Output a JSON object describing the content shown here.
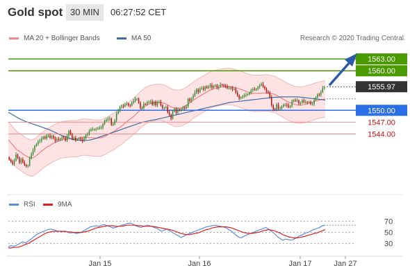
{
  "header": {
    "title": "Gold spot",
    "interval": "30 MIN",
    "time": "06:27:52 CET"
  },
  "legend": {
    "bollinger_label": "MA 20 + Bollinger Bands",
    "ma50_label": "MA 50",
    "credit": "Research © 2020 Trading Central"
  },
  "lower_legend": {
    "rsi_label": "RSI",
    "ma9_label": "9MA"
  },
  "colors": {
    "bullish": "#2e8b2e",
    "bearish": "#b31212",
    "bollinger": "#f08080",
    "ma50": "#3a6ea5",
    "rsi": "#5b8dd9",
    "rsi_ma9": "#e02020",
    "resistance": "#4a9a00",
    "pivot": "#2a6ee8",
    "support": "#f08a8a",
    "current": "#333333",
    "arrow": "#2a5aa8"
  },
  "chart_data": [
    {
      "type": "candlestick",
      "x_ticks": [
        "Jan 15",
        "Jan 16",
        "Jan 17",
        "Jan 27"
      ],
      "ylim": [
        1532,
        1566
      ],
      "levels": [
        {
          "label": "1563.00",
          "value": 1563.0,
          "kind": "resistance"
        },
        {
          "label": "1560.00",
          "value": 1560.0,
          "kind": "resistance"
        },
        {
          "label": "1555.97",
          "value": 1555.97,
          "kind": "current"
        },
        {
          "label": "1550.00",
          "value": 1550.0,
          "kind": "pivot"
        },
        {
          "label": "1547.00",
          "value": 1547.0,
          "kind": "support"
        },
        {
          "label": "1544.00",
          "value": 1544.0,
          "kind": "support"
        }
      ],
      "close": [
        1537.5,
        1537.0,
        1536.4,
        1537.3,
        1538.8,
        1538.0,
        1536.8,
        1537.6,
        1536.8,
        1536.2,
        1535.9,
        1536.0,
        1537.9,
        1538.9,
        1539.9,
        1541.0,
        1541.4,
        1542.1,
        1542.3,
        1542.8,
        1543.3,
        1542.9,
        1543.6,
        1543.6,
        1543.0,
        1543.5,
        1543.0,
        1542.3,
        1542.7,
        1542.6,
        1542.8,
        1543.2,
        1543.0,
        1542.4,
        1543.5,
        1544.8,
        1543.9,
        1542.8,
        1543.0,
        1542.5,
        1542.7,
        1542.9,
        1542.6,
        1542.2,
        1542.9,
        1543.8,
        1544.1,
        1544.8,
        1545.1,
        1545.2,
        1545.2,
        1545.3,
        1545.4,
        1545.6,
        1545.6,
        1546.5,
        1547.3,
        1547.6,
        1547.8,
        1547.9,
        1546.3,
        1546.6,
        1547.4,
        1549.2,
        1549.8,
        1550.9,
        1551.2,
        1551.0,
        1551.5,
        1551.7,
        1551.3,
        1551.2,
        1551.9,
        1552.4,
        1552.9,
        1552.9,
        1551.9,
        1550.6,
        1550.6,
        1551.6,
        1551.5,
        1552.1,
        1552.1,
        1552.2,
        1551.4,
        1552.2,
        1551.3,
        1552.0,
        1552.1,
        1551.3,
        1550.6,
        1550.6,
        1550.8,
        1549.5,
        1548.9,
        1547.9,
        1549.8,
        1550.3,
        1549.4,
        1550.2,
        1550.0,
        1550.3,
        1550.7,
        1550.5,
        1550.9,
        1552.9,
        1552.4,
        1552.9,
        1553.7,
        1554.5,
        1555.3,
        1554.6,
        1555.5,
        1555.6,
        1555.3,
        1556.0,
        1555.7,
        1556.0,
        1556.4,
        1555.7,
        1556.2,
        1556.3,
        1555.7,
        1556.0,
        1556.5,
        1556.4,
        1556.2,
        1556.1,
        1555.6,
        1555.6,
        1555.8,
        1555.3,
        1555.4,
        1554.5,
        1553.8,
        1553.0,
        1553.2,
        1553.5,
        1553.8,
        1553.9,
        1554.1,
        1554.4,
        1555.1,
        1555.3,
        1555.2,
        1555.4,
        1555.9,
        1556.3,
        1556.6,
        1556.0,
        1555.5,
        1554.7,
        1554.4,
        1553.3,
        1551.3,
        1550.3,
        1550.1,
        1551.5,
        1550.4,
        1550.4,
        1551.0,
        1551.4,
        1551.4,
        1551.2,
        1550.8,
        1551.1,
        1552.4,
        1552.5,
        1552.4,
        1552.5,
        1551.7,
        1551.9,
        1552.5,
        1552.1,
        1552.1,
        1552.0,
        1552.1,
        1551.6,
        1551.6,
        1552.6,
        1553.3,
        1554.0,
        1553.9,
        1554.6,
        1555.6,
        1555.97
      ],
      "ma20": [
        1542.5,
        1541.9,
        1541.3,
        1540.7,
        1540.1,
        1539.7,
        1539.4,
        1539.0,
        1538.6,
        1538.3,
        1538.1,
        1537.9,
        1538.0,
        1538.3,
        1538.7,
        1539.1,
        1539.6,
        1540.0,
        1540.4,
        1540.8,
        1541.0,
        1541.4,
        1541.7,
        1541.9,
        1542.1,
        1542.4,
        1542.5,
        1542.6,
        1542.7,
        1542.7,
        1542.8,
        1542.8,
        1542.8,
        1542.8,
        1542.9,
        1543.1,
        1543.2,
        1543.2,
        1543.2,
        1543.1,
        1543.1,
        1543.0,
        1543.0,
        1542.9,
        1543.0,
        1543.0,
        1543.2,
        1543.4,
        1543.7,
        1544.0,
        1544.3,
        1544.6,
        1544.9,
        1545.3,
        1545.6,
        1546.0,
        1546.4,
        1546.9,
        1547.3,
        1547.7,
        1548.1,
        1548.5,
        1549.0,
        1549.5,
        1550.0,
        1550.5,
        1550.9,
        1551.2,
        1551.5,
        1551.7,
        1551.8,
        1551.9,
        1552.0,
        1552.0,
        1552.0,
        1551.9,
        1551.7,
        1551.5,
        1551.2,
        1550.9,
        1550.7,
        1550.5,
        1550.5,
        1550.5,
        1550.6,
        1550.8,
        1551.1,
        1551.4,
        1551.8,
        1552.2,
        1552.6,
        1552.9,
        1553.3,
        1553.6,
        1553.9,
        1554.2,
        1554.5,
        1554.8,
        1555.1,
        1555.3,
        1555.5,
        1555.6,
        1555.7,
        1555.8,
        1555.9,
        1556.0,
        1556.0,
        1556.0,
        1556.0,
        1555.9,
        1555.8,
        1555.6,
        1555.5,
        1555.3,
        1555.1,
        1554.9,
        1554.7,
        1554.5,
        1554.4,
        1554.3,
        1554.3,
        1554.3,
        1554.3,
        1554.3,
        1554.4,
        1554.4,
        1554.4,
        1554.3,
        1554.2,
        1554.1,
        1553.9,
        1553.6,
        1553.3,
        1553.0,
        1552.7,
        1552.4,
        1552.1,
        1551.9,
        1551.7,
        1551.5,
        1551.4,
        1551.3,
        1551.3,
        1551.4,
        1551.5,
        1551.6,
        1551.8,
        1551.9,
        1552.1,
        1552.3,
        1552.4,
        1552.6,
        1552.7,
        1552.8,
        1552.9
      ],
      "ma50": [
        1549.5,
        1549.0,
        1548.5,
        1548.0,
        1547.6,
        1547.2,
        1546.9,
        1546.6,
        1546.3,
        1546.0,
        1545.7,
        1545.4,
        1545.1,
        1544.7,
        1544.3,
        1543.9,
        1543.5,
        1543.2,
        1542.9,
        1542.6,
        1542.5,
        1542.4,
        1542.4,
        1542.4,
        1542.5,
        1542.7,
        1543.0,
        1543.3,
        1543.6,
        1543.9,
        1544.2,
        1544.5,
        1544.8,
        1545.1,
        1545.4,
        1545.7,
        1546.0,
        1546.3,
        1546.6,
        1546.9,
        1547.1,
        1547.3,
        1547.5,
        1547.6,
        1547.8,
        1548.0,
        1548.2,
        1548.4,
        1548.6,
        1548.8,
        1549.0,
        1549.2,
        1549.4,
        1549.6,
        1549.8,
        1550.0,
        1550.2,
        1550.4,
        1550.6,
        1550.8,
        1551.0,
        1551.2,
        1551.4,
        1551.6,
        1551.8,
        1552.0,
        1552.1,
        1552.2,
        1552.3,
        1552.4,
        1552.5,
        1552.6,
        1552.7,
        1552.8,
        1552.9,
        1553.0,
        1553.1,
        1553.2,
        1553.3,
        1553.3,
        1553.4,
        1553.4,
        1553.4,
        1553.4,
        1553.4,
        1553.4,
        1553.3,
        1553.2,
        1553.1,
        1553.0,
        1552.9,
        1552.8,
        1552.7,
        1552.6
      ],
      "rsi_ylim": [
        12,
        82
      ],
      "rsi_ticks": [
        30,
        50,
        70
      ],
      "rsi": [
        24,
        26,
        25,
        27,
        30,
        33,
        31,
        34,
        38,
        42,
        46,
        49,
        51,
        53,
        55,
        56,
        55,
        53,
        52,
        51,
        52,
        50,
        49,
        50,
        48,
        49,
        51,
        54,
        57,
        60,
        61,
        62,
        61,
        63,
        64,
        62,
        60,
        58,
        59,
        61,
        63,
        64,
        66,
        67,
        65,
        62,
        60,
        59,
        61,
        63,
        62,
        60,
        58,
        56,
        52,
        54,
        56,
        53,
        50,
        47,
        44,
        41,
        43,
        46,
        48,
        50,
        52,
        54,
        56,
        58,
        60,
        61,
        62,
        63,
        62,
        61,
        60,
        58,
        55,
        52,
        47,
        43,
        40,
        42,
        45,
        47,
        49,
        51,
        53,
        55,
        57,
        59,
        56,
        52,
        48,
        43,
        39,
        36,
        38,
        37,
        36,
        38,
        41,
        44,
        46,
        49,
        50,
        53,
        55,
        57,
        59,
        62,
        63
      ],
      "rsi_ma9": [
        22,
        22,
        23,
        23,
        24,
        26,
        28,
        30,
        33,
        36,
        39,
        42,
        45,
        48,
        50,
        51,
        52,
        52,
        52,
        52,
        52,
        51,
        51,
        50,
        50,
        50,
        50,
        51,
        52,
        54,
        56,
        58,
        59,
        60,
        61,
        62,
        62,
        62,
        61,
        61,
        61,
        62,
        63,
        63,
        63,
        63,
        62,
        62,
        61,
        61,
        61,
        61,
        60,
        59,
        58,
        57,
        56,
        55,
        54,
        52,
        50,
        48,
        47,
        46,
        46,
        47,
        48,
        49,
        51,
        53,
        55,
        56,
        58,
        59,
        60,
        60,
        60,
        60,
        59,
        58,
        56,
        54,
        52,
        50,
        49,
        48,
        48,
        49,
        50,
        51,
        53,
        54,
        55,
        54,
        53,
        51,
        49,
        46,
        44,
        42,
        41,
        40,
        40,
        41,
        42,
        43,
        45,
        46,
        48,
        49,
        51,
        53,
        55
      ]
    }
  ]
}
